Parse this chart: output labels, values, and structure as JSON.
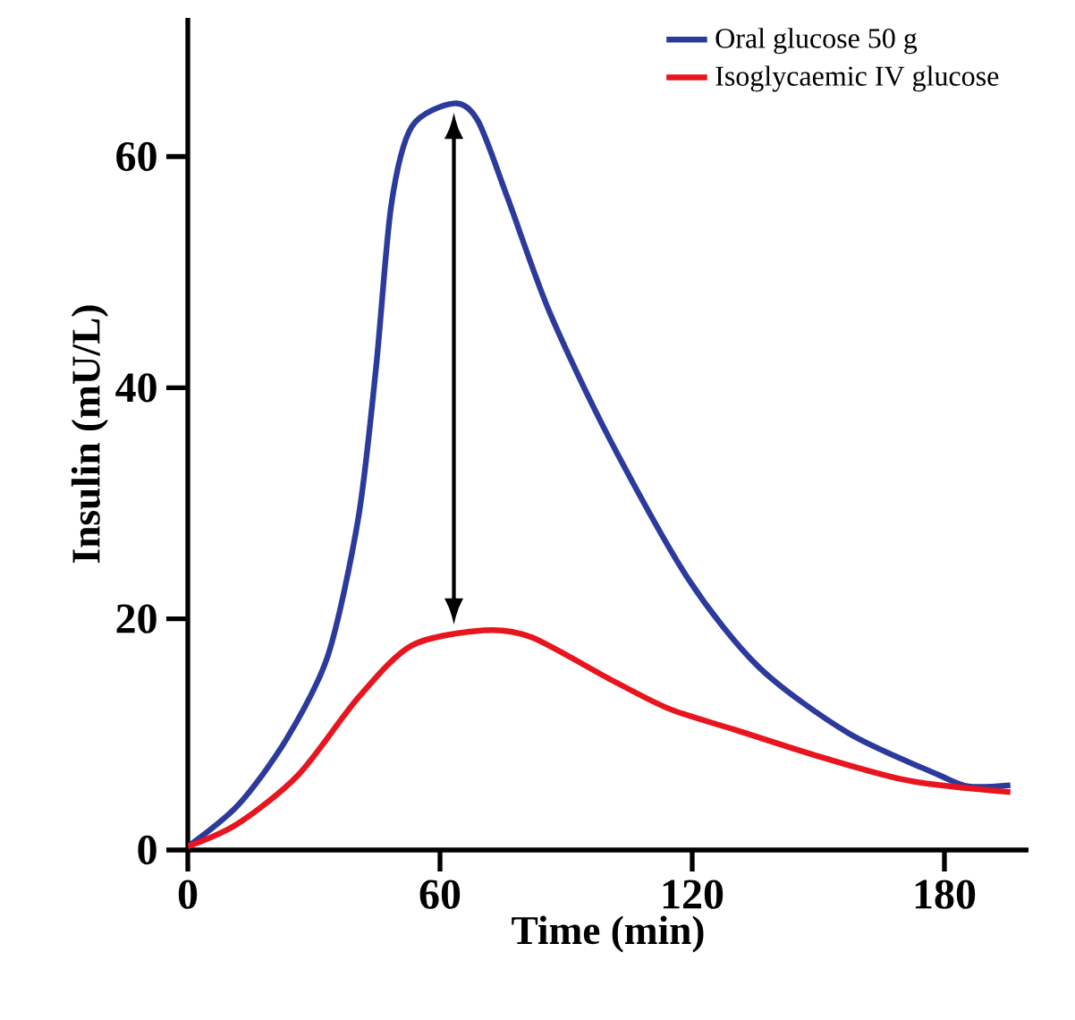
{
  "chart_data": {
    "type": "line",
    "xlabel": "Time (min)",
    "ylabel": "Insulin (mU/L)",
    "xlim": [
      0,
      200
    ],
    "xticks": [
      0,
      60,
      120,
      180
    ],
    "ylim": [
      0,
      72
    ],
    "yticks": [
      0,
      20,
      40,
      60
    ],
    "legend": "top right",
    "grid": false,
    "marker": "none",
    "line_style": "solid",
    "series": [
      {
        "name": "Oral glucose 50 g",
        "color": "#2b3a9c",
        "x": [
          0,
          12,
          23.5,
          33.4,
          40.6,
          44.8,
          48.4,
          53.3,
          63.3,
          69,
          76.1,
          86.1,
          100.3,
          118.8,
          135.9,
          157.2,
          178.6,
          185.7,
          195.7
        ],
        "values": [
          0.3,
          3.9,
          9.6,
          16.9,
          28.8,
          41.8,
          55.8,
          62.6,
          64.6,
          63.1,
          56.4,
          46.5,
          35.6,
          23.6,
          15.8,
          10.1,
          6.5,
          5.5,
          5.6
        ]
      },
      {
        "name": "Isoglycaemic IV glucose",
        "color": "#e8141e",
        "x": [
          0,
          12,
          26.3,
          40.6,
          53.3,
          70.4,
          81.8,
          100.3,
          114.6,
          130.2,
          150.1,
          171.5,
          195.7
        ],
        "values": [
          0.3,
          2.3,
          6.5,
          13.2,
          17.7,
          19,
          18.4,
          14.8,
          12.2,
          10.4,
          8.1,
          6,
          5
        ]
      }
    ]
  }
}
